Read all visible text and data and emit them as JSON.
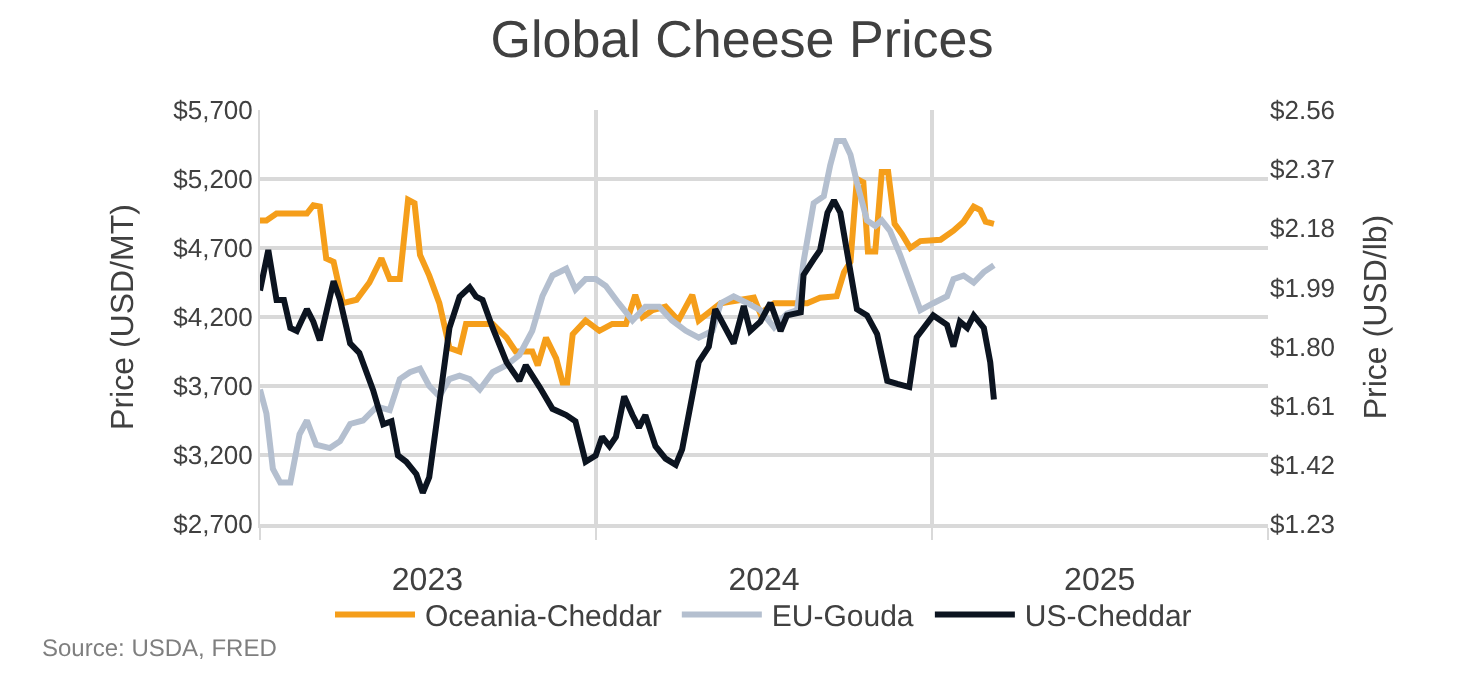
{
  "chart_data": {
    "type": "line",
    "title": "Global Cheese Prices",
    "ylabel": "Price (USD/MT)",
    "y2label": "Price (USD/lb)",
    "xlim": [
      "2023-01-01",
      "2026-01-01"
    ],
    "xticks": [
      {
        "value": "2023-01-01",
        "label": null
      },
      {
        "value": "2023-07-02",
        "label": "2023"
      },
      {
        "value": "2024-01-01",
        "label": null
      },
      {
        "value": "2024-07-02",
        "label": "2024"
      },
      {
        "value": "2025-01-01",
        "label": null
      },
      {
        "value": "2025-07-02",
        "label": "2025"
      },
      {
        "value": "2026-01-01",
        "label": null
      }
    ],
    "ylim": [
      2700,
      5700
    ],
    "yticks": [
      {
        "value": 2700,
        "label": "$2,700"
      },
      {
        "value": 3200,
        "label": "$3,200"
      },
      {
        "value": 3700,
        "label": "$3,700"
      },
      {
        "value": 4200,
        "label": "$4,200"
      },
      {
        "value": 4700,
        "label": "$4,700"
      },
      {
        "value": 5200,
        "label": "$5,200"
      },
      {
        "value": 5700,
        "label": "$5,700"
      }
    ],
    "y2lim": [
      1.23,
      2.56
    ],
    "y2ticks": [
      {
        "value": 1.23,
        "label": "$1.23"
      },
      {
        "value": 1.42,
        "label": "$1.42"
      },
      {
        "value": 1.61,
        "label": "$1.61"
      },
      {
        "value": 1.8,
        "label": "$1.80"
      },
      {
        "value": 1.99,
        "label": "$1.99"
      },
      {
        "value": 2.18,
        "label": "$2.18"
      },
      {
        "value": 2.37,
        "label": "$2.37"
      },
      {
        "value": 2.56,
        "label": "$2.56"
      }
    ],
    "grid": true,
    "legend": "bottom",
    "line_style": "solid",
    "marker": "none",
    "annotations": [
      "Source: USDA, FRED"
    ],
    "series": [
      {
        "name": "Oceania-Cheddar",
        "color": "#f59e1a",
        "x": [
          "2023-01-01",
          "2023-01-08",
          "2023-01-19",
          "2023-02-21",
          "2023-02-28",
          "2023-03-07",
          "2023-03-14",
          "2023-03-22",
          "2023-04-01",
          "2023-04-16",
          "2023-04-30",
          "2023-05-13",
          "2023-05-22",
          "2023-06-02",
          "2023-06-11",
          "2023-06-18",
          "2023-06-24",
          "2023-07-04",
          "2023-07-15",
          "2023-07-26",
          "2023-08-06",
          "2023-08-13",
          "2023-09-11",
          "2023-09-26",
          "2023-10-06",
          "2023-10-24",
          "2023-10-30",
          "2023-11-08",
          "2023-11-19",
          "2023-11-26",
          "2023-12-01",
          "2023-12-07",
          "2023-12-21",
          "2024-01-05",
          "2024-01-19",
          "2024-02-03",
          "2024-02-13",
          "2024-02-21",
          "2024-03-03",
          "2024-03-17",
          "2024-03-31",
          "2024-04-15",
          "2024-04-22",
          "2024-05-16",
          "2024-06-21",
          "2024-06-28",
          "2024-07-13",
          "2024-08-18",
          "2024-09-01",
          "2024-09-19",
          "2024-09-27",
          "2024-10-04",
          "2024-10-11",
          "2024-10-18",
          "2024-10-23",
          "2024-10-31",
          "2024-11-07",
          "2024-11-14",
          "2024-11-21",
          "2024-11-29",
          "2024-12-08",
          "2024-12-19",
          "2025-01-10",
          "2025-01-24",
          "2025-02-04",
          "2025-02-15",
          "2025-02-22",
          "2025-02-28",
          "2025-03-09"
        ],
        "values": [
          4900,
          4900,
          4950,
          4950,
          5010,
          5000,
          4625,
          4600,
          4300,
          4325,
          4450,
          4625,
          4475,
          4475,
          5050,
          5025,
          4650,
          4500,
          4300,
          3975,
          3950,
          4150,
          4150,
          4050,
          3950,
          3950,
          3850,
          4050,
          3900,
          3725,
          3725,
          4075,
          4175,
          4100,
          4150,
          4150,
          4360,
          4200,
          4250,
          4275,
          4175,
          4360,
          4175,
          4300,
          4340,
          4225,
          4300,
          4300,
          4340,
          4350,
          4525,
          4600,
          5200,
          5175,
          4675,
          4675,
          5250,
          5250,
          4875,
          4800,
          4700,
          4750,
          4760,
          4825,
          4890,
          5000,
          4975,
          4890,
          4875
        ]
      },
      {
        "name": "EU-Gouda",
        "color": "#b4bfcf",
        "x": [
          "2023-01-01",
          "2023-01-08",
          "2023-01-15",
          "2023-01-23",
          "2023-02-03",
          "2023-02-13",
          "2023-02-21",
          "2023-03-03",
          "2023-03-18",
          "2023-03-29",
          "2023-04-09",
          "2023-04-23",
          "2023-05-08",
          "2023-05-22",
          "2023-06-02",
          "2023-06-13",
          "2023-06-24",
          "2023-07-04",
          "2023-07-15",
          "2023-07-26",
          "2023-08-06",
          "2023-08-17",
          "2023-08-28",
          "2023-09-11",
          "2023-09-26",
          "2023-10-10",
          "2023-10-24",
          "2023-11-04",
          "2023-11-15",
          "2023-11-30",
          "2023-12-10",
          "2023-12-21",
          "2024-01-01",
          "2024-01-12",
          "2024-01-26",
          "2024-02-10",
          "2024-02-24",
          "2024-03-10",
          "2024-03-24",
          "2024-04-08",
          "2024-04-22",
          "2024-05-07",
          "2024-05-16",
          "2024-05-30",
          "2024-06-14",
          "2024-06-28",
          "2024-07-13",
          "2024-07-27",
          "2024-08-07",
          "2024-08-14",
          "2024-08-25",
          "2024-09-05",
          "2024-09-12",
          "2024-09-19",
          "2024-09-27",
          "2024-10-04",
          "2024-10-11",
          "2024-10-22",
          "2024-10-31",
          "2024-11-07",
          "2024-11-16",
          "2024-11-27",
          "2024-12-08",
          "2024-12-19",
          "2025-01-02",
          "2025-01-17",
          "2025-01-24",
          "2025-02-04",
          "2025-02-15",
          "2025-02-26",
          "2025-03-09"
        ],
        "values": [
          3675,
          3500,
          3100,
          3000,
          3000,
          3350,
          3450,
          3275,
          3250,
          3300,
          3425,
          3450,
          3550,
          3525,
          3750,
          3800,
          3825,
          3700,
          3625,
          3750,
          3775,
          3750,
          3675,
          3800,
          3850,
          3925,
          4100,
          4350,
          4500,
          4550,
          4400,
          4475,
          4475,
          4425,
          4300,
          4175,
          4275,
          4275,
          4175,
          4100,
          4050,
          4100,
          4300,
          4350,
          4300,
          4250,
          4125,
          4225,
          4250,
          4600,
          5025,
          5075,
          5300,
          5475,
          5475,
          5375,
          5175,
          4900,
          4860,
          4900,
          4825,
          4650,
          4450,
          4250,
          4300,
          4350,
          4475,
          4500,
          4450,
          4525,
          4575
        ]
      },
      {
        "name": "US-Cheddar",
        "color": "#0c1420",
        "axis": "y2",
        "x": [
          "2023-01-01",
          "2023-01-10",
          "2023-01-19",
          "2023-01-27",
          "2023-02-03",
          "2023-02-10",
          "2023-02-21",
          "2023-02-28",
          "2023-03-07",
          "2023-03-22",
          "2023-03-29",
          "2023-04-09",
          "2023-04-19",
          "2023-05-04",
          "2023-05-15",
          "2023-05-24",
          "2023-05-31",
          "2023-06-09",
          "2023-06-20",
          "2023-06-27",
          "2023-07-04",
          "2023-07-15",
          "2023-07-26",
          "2023-08-06",
          "2023-08-17",
          "2023-08-24",
          "2023-08-31",
          "2023-09-11",
          "2023-09-26",
          "2023-10-10",
          "2023-10-17",
          "2023-11-01",
          "2023-11-15",
          "2023-11-30",
          "2023-12-10",
          "2023-12-21",
          "2024-01-01",
          "2024-01-08",
          "2024-01-16",
          "2024-01-23",
          "2024-02-01",
          "2024-02-10",
          "2024-02-17",
          "2024-02-24",
          "2024-03-06",
          "2024-03-17",
          "2024-03-28",
          "2024-04-04",
          "2024-04-22",
          "2024-05-03",
          "2024-05-10",
          "2024-05-30",
          "2024-06-10",
          "2024-06-17",
          "2024-06-28",
          "2024-07-09",
          "2024-07-20",
          "2024-07-27",
          "2024-08-11",
          "2024-08-14",
          "2024-08-25",
          "2024-09-01",
          "2024-09-09",
          "2024-09-16",
          "2024-09-23",
          "2024-10-04",
          "2024-10-11",
          "2024-10-22",
          "2024-11-02",
          "2024-11-13",
          "2024-11-24",
          "2024-12-07",
          "2024-12-15",
          "2025-01-02",
          "2025-01-17",
          "2025-01-24",
          "2025-01-31",
          "2025-02-08",
          "2025-02-15",
          "2025-02-26",
          "2025-03-05",
          "2025-03-09"
        ],
        "values": [
          1.98,
          2.11,
          1.95,
          1.95,
          1.86,
          1.85,
          1.92,
          1.88,
          1.82,
          2.01,
          1.95,
          1.81,
          1.78,
          1.66,
          1.55,
          1.56,
          1.45,
          1.43,
          1.39,
          1.33,
          1.38,
          1.62,
          1.86,
          1.96,
          1.99,
          1.96,
          1.95,
          1.86,
          1.75,
          1.69,
          1.74,
          1.67,
          1.6,
          1.58,
          1.56,
          1.43,
          1.45,
          1.51,
          1.48,
          1.51,
          1.64,
          1.58,
          1.54,
          1.58,
          1.48,
          1.44,
          1.42,
          1.47,
          1.75,
          1.8,
          1.92,
          1.81,
          1.93,
          1.85,
          1.88,
          1.94,
          1.85,
          1.9,
          1.91,
          2.03,
          2.08,
          2.11,
          2.23,
          2.27,
          2.23,
          2.04,
          1.92,
          1.9,
          1.84,
          1.69,
          1.68,
          1.67,
          1.83,
          1.9,
          1.87,
          1.8,
          1.88,
          1.86,
          1.9,
          1.86,
          1.75,
          1.63
        ]
      }
    ]
  }
}
